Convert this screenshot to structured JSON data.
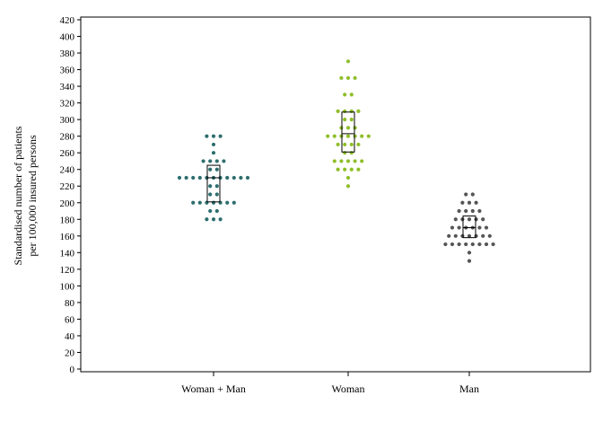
{
  "chart_data": {
    "type": "scatter",
    "ylabel_lines": [
      "Standardised number of patients",
      "per 100,000 insured persons"
    ],
    "ylim": [
      0,
      420
    ],
    "yticks": [
      0,
      20,
      40,
      60,
      80,
      100,
      120,
      140,
      160,
      180,
      200,
      220,
      240,
      260,
      280,
      300,
      320,
      340,
      360,
      380,
      400,
      420
    ],
    "grid": false,
    "legend": "none",
    "categories": [
      "Woman + Man",
      "Woman",
      "Man"
    ],
    "series": [
      {
        "category": "Woman + Man",
        "color": "#2e6e6e",
        "box": {
          "q1": 201,
          "median": 230,
          "q3": 245
        },
        "rows": [
          {
            "y": 280,
            "count": 3
          },
          {
            "y": 270,
            "count": 1
          },
          {
            "y": 260,
            "count": 1
          },
          {
            "y": 250,
            "count": 4
          },
          {
            "y": 240,
            "count": 2
          },
          {
            "y": 230,
            "count": 11
          },
          {
            "y": 220,
            "count": 2
          },
          {
            "y": 210,
            "count": 2
          },
          {
            "y": 200,
            "count": 7
          },
          {
            "y": 190,
            "count": 2
          },
          {
            "y": 180,
            "count": 3
          }
        ]
      },
      {
        "category": "Woman",
        "color": "#8fbe2a",
        "box": {
          "q1": 261,
          "median": 283,
          "q3": 309
        },
        "rows": [
          {
            "y": 370,
            "count": 1
          },
          {
            "y": 350,
            "count": 3
          },
          {
            "y": 330,
            "count": 2
          },
          {
            "y": 310,
            "count": 4
          },
          {
            "y": 300,
            "count": 2
          },
          {
            "y": 290,
            "count": 3
          },
          {
            "y": 280,
            "count": 7
          },
          {
            "y": 270,
            "count": 4
          },
          {
            "y": 260,
            "count": 2
          },
          {
            "y": 250,
            "count": 5
          },
          {
            "y": 240,
            "count": 4
          },
          {
            "y": 230,
            "count": 1
          },
          {
            "y": 220,
            "count": 1
          }
        ]
      },
      {
        "category": "Man",
        "color": "#555555",
        "box": {
          "q1": 158,
          "median": 170,
          "q3": 184
        },
        "rows": [
          {
            "y": 210,
            "count": 2
          },
          {
            "y": 200,
            "count": 3
          },
          {
            "y": 190,
            "count": 4
          },
          {
            "y": 180,
            "count": 5
          },
          {
            "y": 170,
            "count": 6
          },
          {
            "y": 160,
            "count": 7
          },
          {
            "y": 150,
            "count": 8
          },
          {
            "y": 140,
            "count": 1
          },
          {
            "y": 130,
            "count": 1
          }
        ]
      }
    ]
  }
}
